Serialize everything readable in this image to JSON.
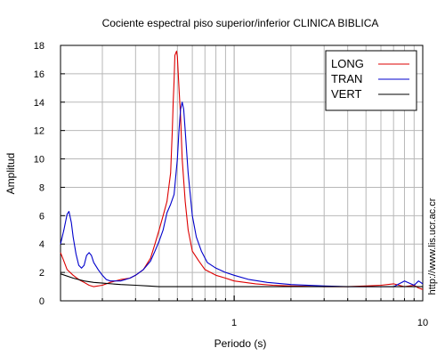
{
  "chart_data": {
    "type": "line",
    "title": "Cociente espectral piso superior/inferior  CLINICA BIBLICA",
    "xlabel": "Periodo (s)",
    "ylabel": "Amplitud",
    "xscale": "log",
    "xlim": [
      0.12,
      10
    ],
    "ylim": [
      0,
      18
    ],
    "x_tick_labels": [
      {
        "value": 1,
        "label": "1"
      },
      {
        "value": 10,
        "label": "10"
      }
    ],
    "y_tick_labels": [
      "0",
      "2",
      "4",
      "6",
      "8",
      "10",
      "12",
      "14",
      "16",
      "18"
    ],
    "grid": true,
    "legend_position": "top-right",
    "series": [
      {
        "name": "LONG",
        "color": "#dd0000",
        "points": [
          [
            0.12,
            3.4
          ],
          [
            0.125,
            2.8
          ],
          [
            0.13,
            2.2
          ],
          [
            0.14,
            1.8
          ],
          [
            0.15,
            1.5
          ],
          [
            0.16,
            1.3
          ],
          [
            0.17,
            1.1
          ],
          [
            0.18,
            1.0
          ],
          [
            0.2,
            1.1
          ],
          [
            0.22,
            1.3
          ],
          [
            0.25,
            1.5
          ],
          [
            0.28,
            1.6
          ],
          [
            0.3,
            1.8
          ],
          [
            0.33,
            2.2
          ],
          [
            0.36,
            3.0
          ],
          [
            0.38,
            4.0
          ],
          [
            0.4,
            5.0
          ],
          [
            0.42,
            6.0
          ],
          [
            0.44,
            7.0
          ],
          [
            0.46,
            9.0
          ],
          [
            0.47,
            12.0
          ],
          [
            0.475,
            14.0
          ],
          [
            0.48,
            15.5
          ],
          [
            0.485,
            17.3
          ],
          [
            0.495,
            17.6
          ],
          [
            0.5,
            17.2
          ],
          [
            0.51,
            15.0
          ],
          [
            0.52,
            13.0
          ],
          [
            0.53,
            10.0
          ],
          [
            0.55,
            7.0
          ],
          [
            0.57,
            5.0
          ],
          [
            0.6,
            3.5
          ],
          [
            0.65,
            2.8
          ],
          [
            0.7,
            2.2
          ],
          [
            0.8,
            1.8
          ],
          [
            0.9,
            1.6
          ],
          [
            1.0,
            1.4
          ],
          [
            1.3,
            1.2
          ],
          [
            1.6,
            1.1
          ],
          [
            2.0,
            1.05
          ],
          [
            3.0,
            1.0
          ],
          [
            4.0,
            1.0
          ],
          [
            5.0,
            1.05
          ],
          [
            6.0,
            1.1
          ],
          [
            7.0,
            1.2
          ],
          [
            8.0,
            1.0
          ],
          [
            9.0,
            1.1
          ],
          [
            9.5,
            0.9
          ],
          [
            10.0,
            0.8
          ]
        ]
      },
      {
        "name": "TRAN",
        "color": "#0000cc",
        "points": [
          [
            0.12,
            4.0
          ],
          [
            0.125,
            5.0
          ],
          [
            0.13,
            6.1
          ],
          [
            0.133,
            6.3
          ],
          [
            0.137,
            5.5
          ],
          [
            0.14,
            4.5
          ],
          [
            0.145,
            3.3
          ],
          [
            0.15,
            2.5
          ],
          [
            0.155,
            2.3
          ],
          [
            0.16,
            2.5
          ],
          [
            0.165,
            3.2
          ],
          [
            0.17,
            3.4
          ],
          [
            0.175,
            3.2
          ],
          [
            0.18,
            2.7
          ],
          [
            0.19,
            2.2
          ],
          [
            0.2,
            1.8
          ],
          [
            0.21,
            1.5
          ],
          [
            0.22,
            1.4
          ],
          [
            0.25,
            1.4
          ],
          [
            0.28,
            1.6
          ],
          [
            0.3,
            1.8
          ],
          [
            0.33,
            2.2
          ],
          [
            0.36,
            2.8
          ],
          [
            0.38,
            3.5
          ],
          [
            0.4,
            4.2
          ],
          [
            0.42,
            5.0
          ],
          [
            0.44,
            6.2
          ],
          [
            0.46,
            6.8
          ],
          [
            0.48,
            7.5
          ],
          [
            0.5,
            10.0
          ],
          [
            0.51,
            12.0
          ],
          [
            0.52,
            13.5
          ],
          [
            0.53,
            14.0
          ],
          [
            0.54,
            13.5
          ],
          [
            0.55,
            12.0
          ],
          [
            0.57,
            9.0
          ],
          [
            0.6,
            6.0
          ],
          [
            0.63,
            4.5
          ],
          [
            0.67,
            3.5
          ],
          [
            0.72,
            2.7
          ],
          [
            0.8,
            2.3
          ],
          [
            0.9,
            2.0
          ],
          [
            1.0,
            1.8
          ],
          [
            1.2,
            1.5
          ],
          [
            1.5,
            1.3
          ],
          [
            2.0,
            1.15
          ],
          [
            3.0,
            1.05
          ],
          [
            4.0,
            1.0
          ],
          [
            5.0,
            1.0
          ],
          [
            6.0,
            1.0
          ],
          [
            7.0,
            1.0
          ],
          [
            8.0,
            1.4
          ],
          [
            9.0,
            1.1
          ],
          [
            9.5,
            1.4
          ],
          [
            10.0,
            1.2
          ]
        ]
      },
      {
        "name": "VERT",
        "color": "#000000",
        "points": [
          [
            0.12,
            1.9
          ],
          [
            0.14,
            1.6
          ],
          [
            0.16,
            1.4
          ],
          [
            0.18,
            1.3
          ],
          [
            0.2,
            1.25
          ],
          [
            0.25,
            1.15
          ],
          [
            0.3,
            1.1
          ],
          [
            0.35,
            1.05
          ],
          [
            0.4,
            1.0
          ],
          [
            0.5,
            1.0
          ],
          [
            0.6,
            1.0
          ],
          [
            0.8,
            1.0
          ],
          [
            1.0,
            1.0
          ],
          [
            2.0,
            1.0
          ],
          [
            3.0,
            1.0
          ],
          [
            5.0,
            1.0
          ],
          [
            7.0,
            1.0
          ],
          [
            9.0,
            1.0
          ],
          [
            10.0,
            1.0
          ]
        ]
      }
    ]
  },
  "watermark": "http://www.lis.ucr.ac.cr"
}
